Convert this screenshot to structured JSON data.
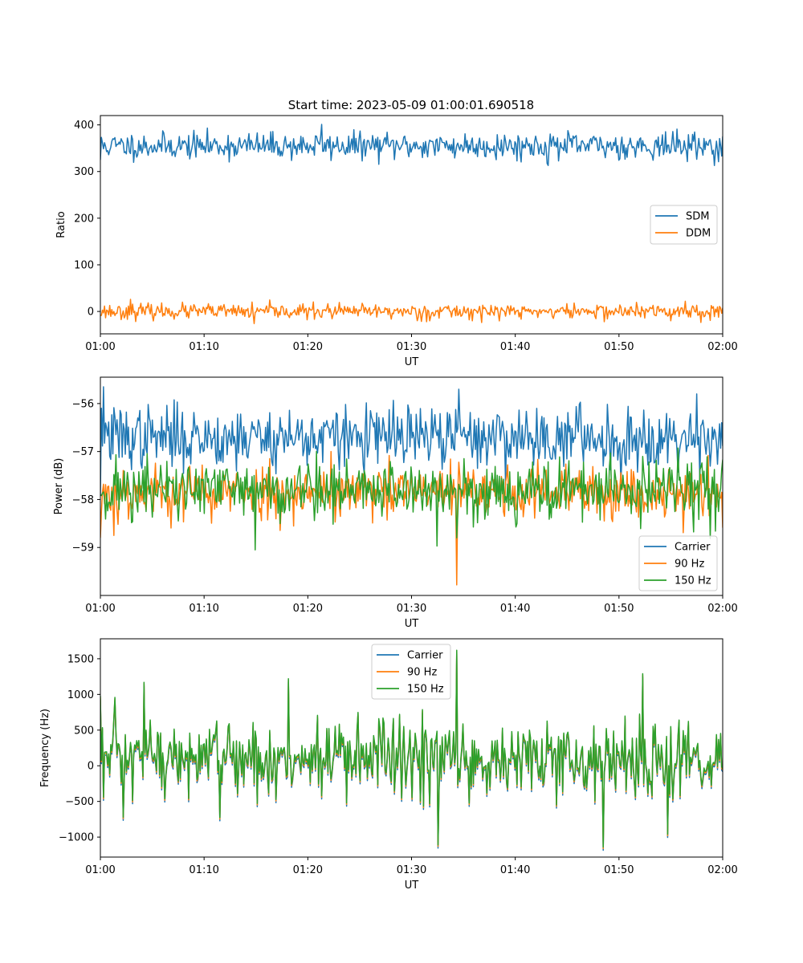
{
  "title": "Start time: 2023-05-09 01:00:01.690518",
  "colors": {
    "blue": "#1f77b4",
    "orange": "#ff7f0e",
    "green": "#2ca02c"
  },
  "chart_data": [
    {
      "type": "line",
      "title": "Start time: 2023-05-09 01:00:01.690518",
      "xlabel": "UT",
      "ylabel": "Ratio",
      "xlim_minutes": [
        0,
        60
      ],
      "ylim": [
        -48,
        420
      ],
      "x_ticks": [
        "01:00",
        "01:10",
        "01:20",
        "01:30",
        "01:40",
        "01:50",
        "02:00"
      ],
      "y_ticks": [
        0,
        100,
        200,
        300,
        400
      ],
      "y_tick_labels": [
        "0",
        "100",
        "200",
        "300",
        "400"
      ],
      "legend_placement": "center-right",
      "grid": false,
      "series": [
        {
          "name": "SDM",
          "color": "#1f77b4",
          "base": 355,
          "amplitude": 14,
          "seed": 11,
          "extremes": [
            [
              0,
              325
            ],
            [
              21.3,
              401
            ],
            [
              43.2,
              313
            ],
            [
              59.6,
              321
            ]
          ]
        },
        {
          "name": "DDM",
          "color": "#ff7f0e",
          "base": 0,
          "amplitude": 8,
          "seed": 23,
          "extremes": [
            [
              2.9,
              26
            ],
            [
              14.8,
              -26
            ],
            [
              31.5,
              -22
            ],
            [
              56.4,
              22
            ],
            [
              55.0,
              -20
            ]
          ]
        }
      ]
    },
    {
      "type": "line",
      "xlabel": "UT",
      "ylabel": "Power (dB)",
      "xlim_minutes": [
        0,
        60
      ],
      "ylim": [
        -60.0,
        -55.45
      ],
      "x_ticks": [
        "01:00",
        "01:10",
        "01:20",
        "01:30",
        "01:40",
        "01:50",
        "02:00"
      ],
      "y_ticks": [
        -56,
        -57,
        -58,
        -59
      ],
      "y_tick_labels": [
        "−56",
        "−57",
        "−58",
        "−59"
      ],
      "legend_placement": "bottom-right",
      "grid": false,
      "series": [
        {
          "name": "Carrier",
          "color": "#1f77b4",
          "base": -56.7,
          "amplitude": 0.32,
          "seed": 37,
          "extremes": [
            [
              0.3,
              -55.65
            ],
            [
              34.6,
              -55.7
            ],
            [
              57.5,
              -55.8
            ],
            [
              0,
              -57.9
            ],
            [
              50.2,
              -57.7
            ]
          ]
        },
        {
          "name": "90 Hz",
          "color": "#ff7f0e",
          "base": -57.85,
          "amplitude": 0.28,
          "seed": 53,
          "extremes": [
            [
              34.4,
              -59.78
            ],
            [
              1.3,
              -58.75
            ],
            [
              22.2,
              -57.0
            ],
            [
              0,
              -58.8
            ]
          ]
        },
        {
          "name": "150 Hz",
          "color": "#2ca02c",
          "base": -57.8,
          "amplitude": 0.32,
          "seed": 71,
          "extremes": [
            [
              14.9,
              -59.05
            ],
            [
              32.5,
              -58.97
            ],
            [
              34.4,
              -58.8
            ],
            [
              20.8,
              -57.0
            ]
          ]
        }
      ]
    },
    {
      "type": "line",
      "xlabel": "UT",
      "ylabel": "Frequency (Hz)",
      "xlim_minutes": [
        0,
        60
      ],
      "ylim": [
        -1280,
        1780
      ],
      "x_ticks": [
        "01:00",
        "01:10",
        "01:20",
        "01:30",
        "01:40",
        "01:50",
        "02:00"
      ],
      "y_ticks": [
        1500,
        1000,
        500,
        0,
        -500,
        -1000
      ],
      "y_tick_labels": [
        "1500",
        "1000",
        "500",
        "0",
        "−500",
        "−1000"
      ],
      "legend_placement": "upper-center",
      "grid": false,
      "series_shared_base": {
        "base": 100,
        "amplitude": 280,
        "seed": 97,
        "extremes": [
          [
            34.4,
            1620
          ],
          [
            4.2,
            1170
          ],
          [
            18.1,
            1220
          ],
          [
            52.3,
            1290
          ],
          [
            0,
            980
          ],
          [
            32.6,
            -1110
          ],
          [
            48.5,
            -1140
          ],
          [
            2.2,
            -720
          ],
          [
            54.7,
            -960
          ]
        ]
      },
      "series": [
        {
          "name": "Carrier",
          "color": "#1f77b4",
          "offset": -45
        },
        {
          "name": "90 Hz",
          "color": "#ff7f0e",
          "offset": -20
        },
        {
          "name": "150 Hz",
          "color": "#2ca02c",
          "offset": 0
        }
      ]
    }
  ]
}
